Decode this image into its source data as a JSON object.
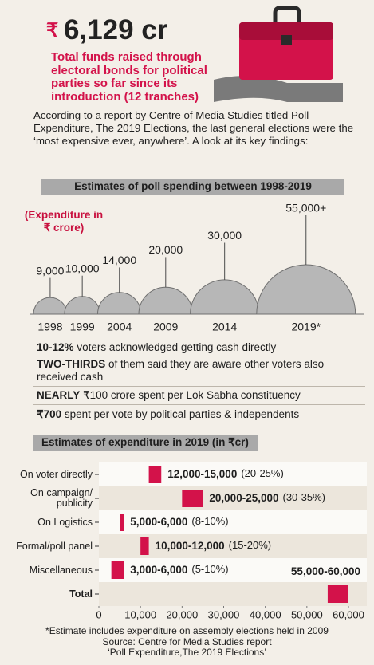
{
  "header": {
    "currency": "₹",
    "amount": "6,129 cr",
    "subtitle": "Total funds raised through electoral bonds for political parties so far since its introduction (12 tranches)"
  },
  "intro": "According to a report by Centre of Media Studies titled Poll Expenditure, The 2019 Elections, the last general elections were the ‘most expensive ever, anywhere’. A look at its key findings:",
  "chart_data": [
    {
      "type": "semicircle",
      "title": "Estimates of poll spending between 1998-2019",
      "ylabel": "(Expenditure in ₹ crore)",
      "categories": [
        "1998",
        "1999",
        "2004",
        "2009",
        "2014",
        "2019*"
      ],
      "values": [
        9000,
        10000,
        14000,
        20000,
        30000,
        55000
      ],
      "value_labels": [
        "9,000",
        "10,000",
        "14,000",
        "20,000",
        "30,000",
        "55,000+"
      ],
      "color": "#b7b7b7"
    },
    {
      "type": "range-bar",
      "title": "Estimates of expenditure in 2019 (in ₹cr)",
      "categories": [
        "On voter directly",
        "On campaign/ publicity",
        "On Logistics",
        "Formal/poll panel",
        "Miscellaneous",
        "Total"
      ],
      "low": [
        12000,
        20000,
        5000,
        10000,
        3000,
        55000
      ],
      "high": [
        15000,
        25000,
        6000,
        12000,
        6000,
        60000
      ],
      "value_labels": [
        "12,000-15,000",
        "20,000-25,000",
        "5,000-6,000",
        "10,000-12,000",
        "3,000-6,000",
        "55,000-60,000"
      ],
      "share_labels": [
        "(20-25%)",
        "(30-35%)",
        "(8-10%)",
        "(15-20%)",
        "(5-10%)",
        null
      ],
      "xlim": [
        0,
        60000
      ],
      "xticks": [
        0,
        {
          "value": 10000,
          "label": "10,000"
        },
        {
          "value": 20000,
          "label": "20,000"
        },
        {
          "value": 30000,
          "label": "30,000"
        },
        {
          "value": 40000,
          "label": "40,000"
        },
        {
          "value": 50000,
          "label": "50,000"
        },
        {
          "value": 60000,
          "label": "60,000"
        }
      ],
      "color": "#d3124a",
      "grid": false
    }
  ],
  "findings": [
    {
      "lead": "10-12%",
      "text": "voters acknowledged getting cash directly"
    },
    {
      "lead": "TWO-THIRDS",
      "text": "of them said they are aware other voters also received cash"
    },
    {
      "lead": "NEARLY",
      "text": "₹100 crore spent per Lok Sabha constituency"
    },
    {
      "lead": "₹700",
      "text": "spent per vote by political parties & independents"
    }
  ],
  "footnote": "*Estimate includes expenditure on assembly elections held in 2009",
  "source": [
    "Source: Centre for Media Studies report",
    "‘Poll Expenditure,The 2019 Elections’"
  ]
}
